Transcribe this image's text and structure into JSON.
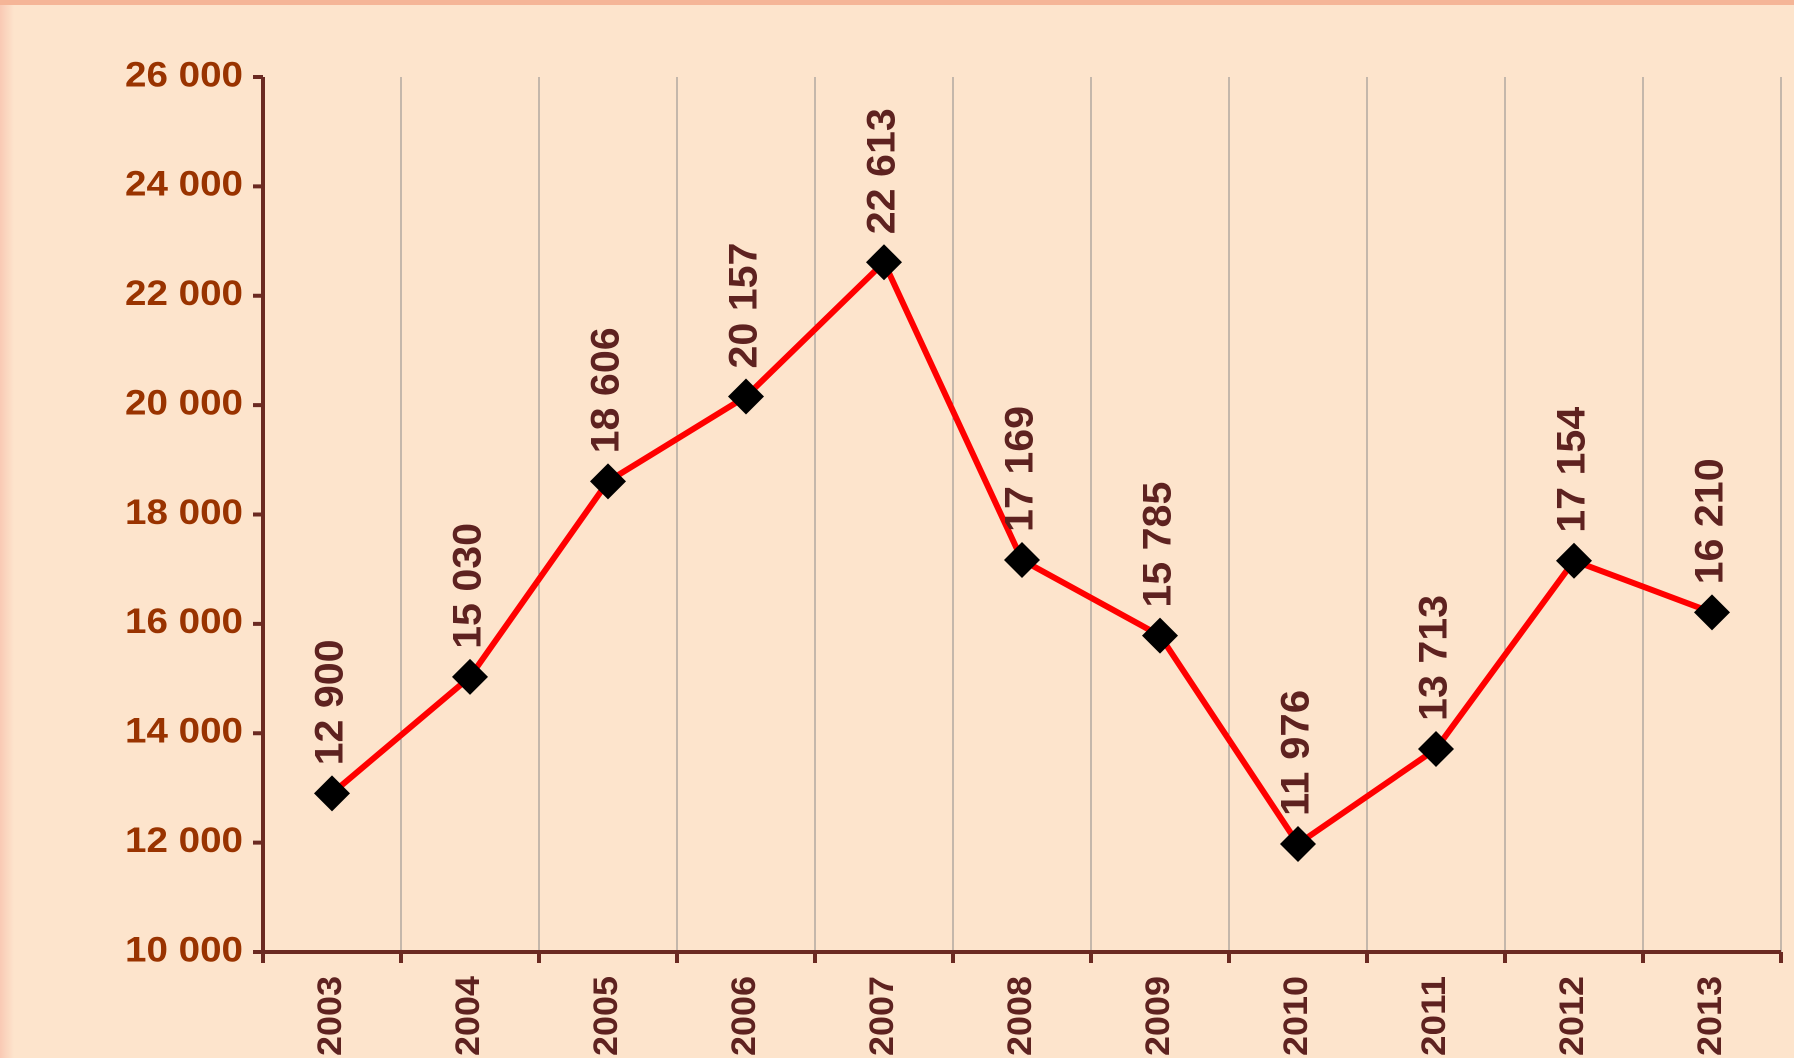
{
  "chart_data": {
    "type": "line",
    "categories": [
      "2003",
      "2004",
      "2005",
      "2006",
      "2007",
      "2008",
      "2009",
      "2010",
      "2011",
      "2012",
      "2013"
    ],
    "values": [
      12900,
      15030,
      18606,
      20157,
      22613,
      17169,
      15785,
      11976,
      13713,
      17154,
      16210
    ],
    "value_labels": [
      "12 900",
      "15 030",
      "18 606",
      "20 157",
      "22 613",
      "17 169",
      "15 785",
      "11 976",
      "13 713",
      "17 154",
      "16 210"
    ],
    "color": "#ff0000",
    "marker_color": "#000000",
    "ylim": [
      10000,
      26000
    ],
    "yticks": [
      {
        "value": 10000,
        "label": "10 000"
      },
      {
        "value": 12000,
        "label": "12 000"
      },
      {
        "value": 14000,
        "label": "14 000"
      },
      {
        "value": 16000,
        "label": "16 000"
      },
      {
        "value": 18000,
        "label": "18 000"
      },
      {
        "value": 20000,
        "label": "20 000"
      },
      {
        "value": 22000,
        "label": "22 000"
      },
      {
        "value": 24000,
        "label": "24 000"
      },
      {
        "value": 26000,
        "label": "26 000"
      }
    ],
    "grid": true
  }
}
